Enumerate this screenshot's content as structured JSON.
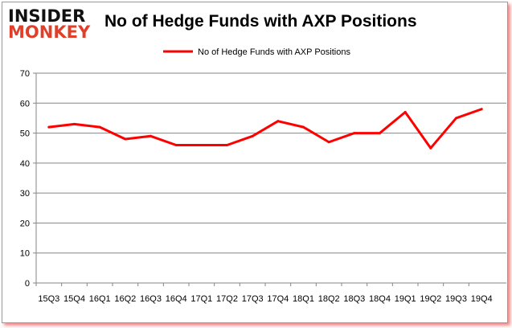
{
  "logo": {
    "line1": "INSIDER",
    "line2": "MONKEY"
  },
  "chart_data": {
    "type": "line",
    "title": "No of Hedge Funds with AXP Positions",
    "categories": [
      "15Q3",
      "15Q4",
      "16Q1",
      "16Q2",
      "16Q3",
      "16Q4",
      "17Q1",
      "17Q2",
      "17Q3",
      "17Q4",
      "18Q1",
      "18Q2",
      "18Q3",
      "18Q4",
      "19Q1",
      "19Q2",
      "19Q3",
      "19Q4"
    ],
    "series": [
      {
        "name": "No of Hedge Funds with AXP Positions",
        "color": "#ff0000",
        "values": [
          52,
          53,
          52,
          48,
          49,
          46,
          46,
          46,
          49,
          54,
          52,
          47,
          50,
          50,
          57,
          45,
          55,
          58
        ]
      }
    ],
    "ylim": [
      0,
      70
    ],
    "yticks": [
      0,
      10,
      20,
      30,
      40,
      50,
      60,
      70
    ],
    "grid": true,
    "legend": "top"
  }
}
